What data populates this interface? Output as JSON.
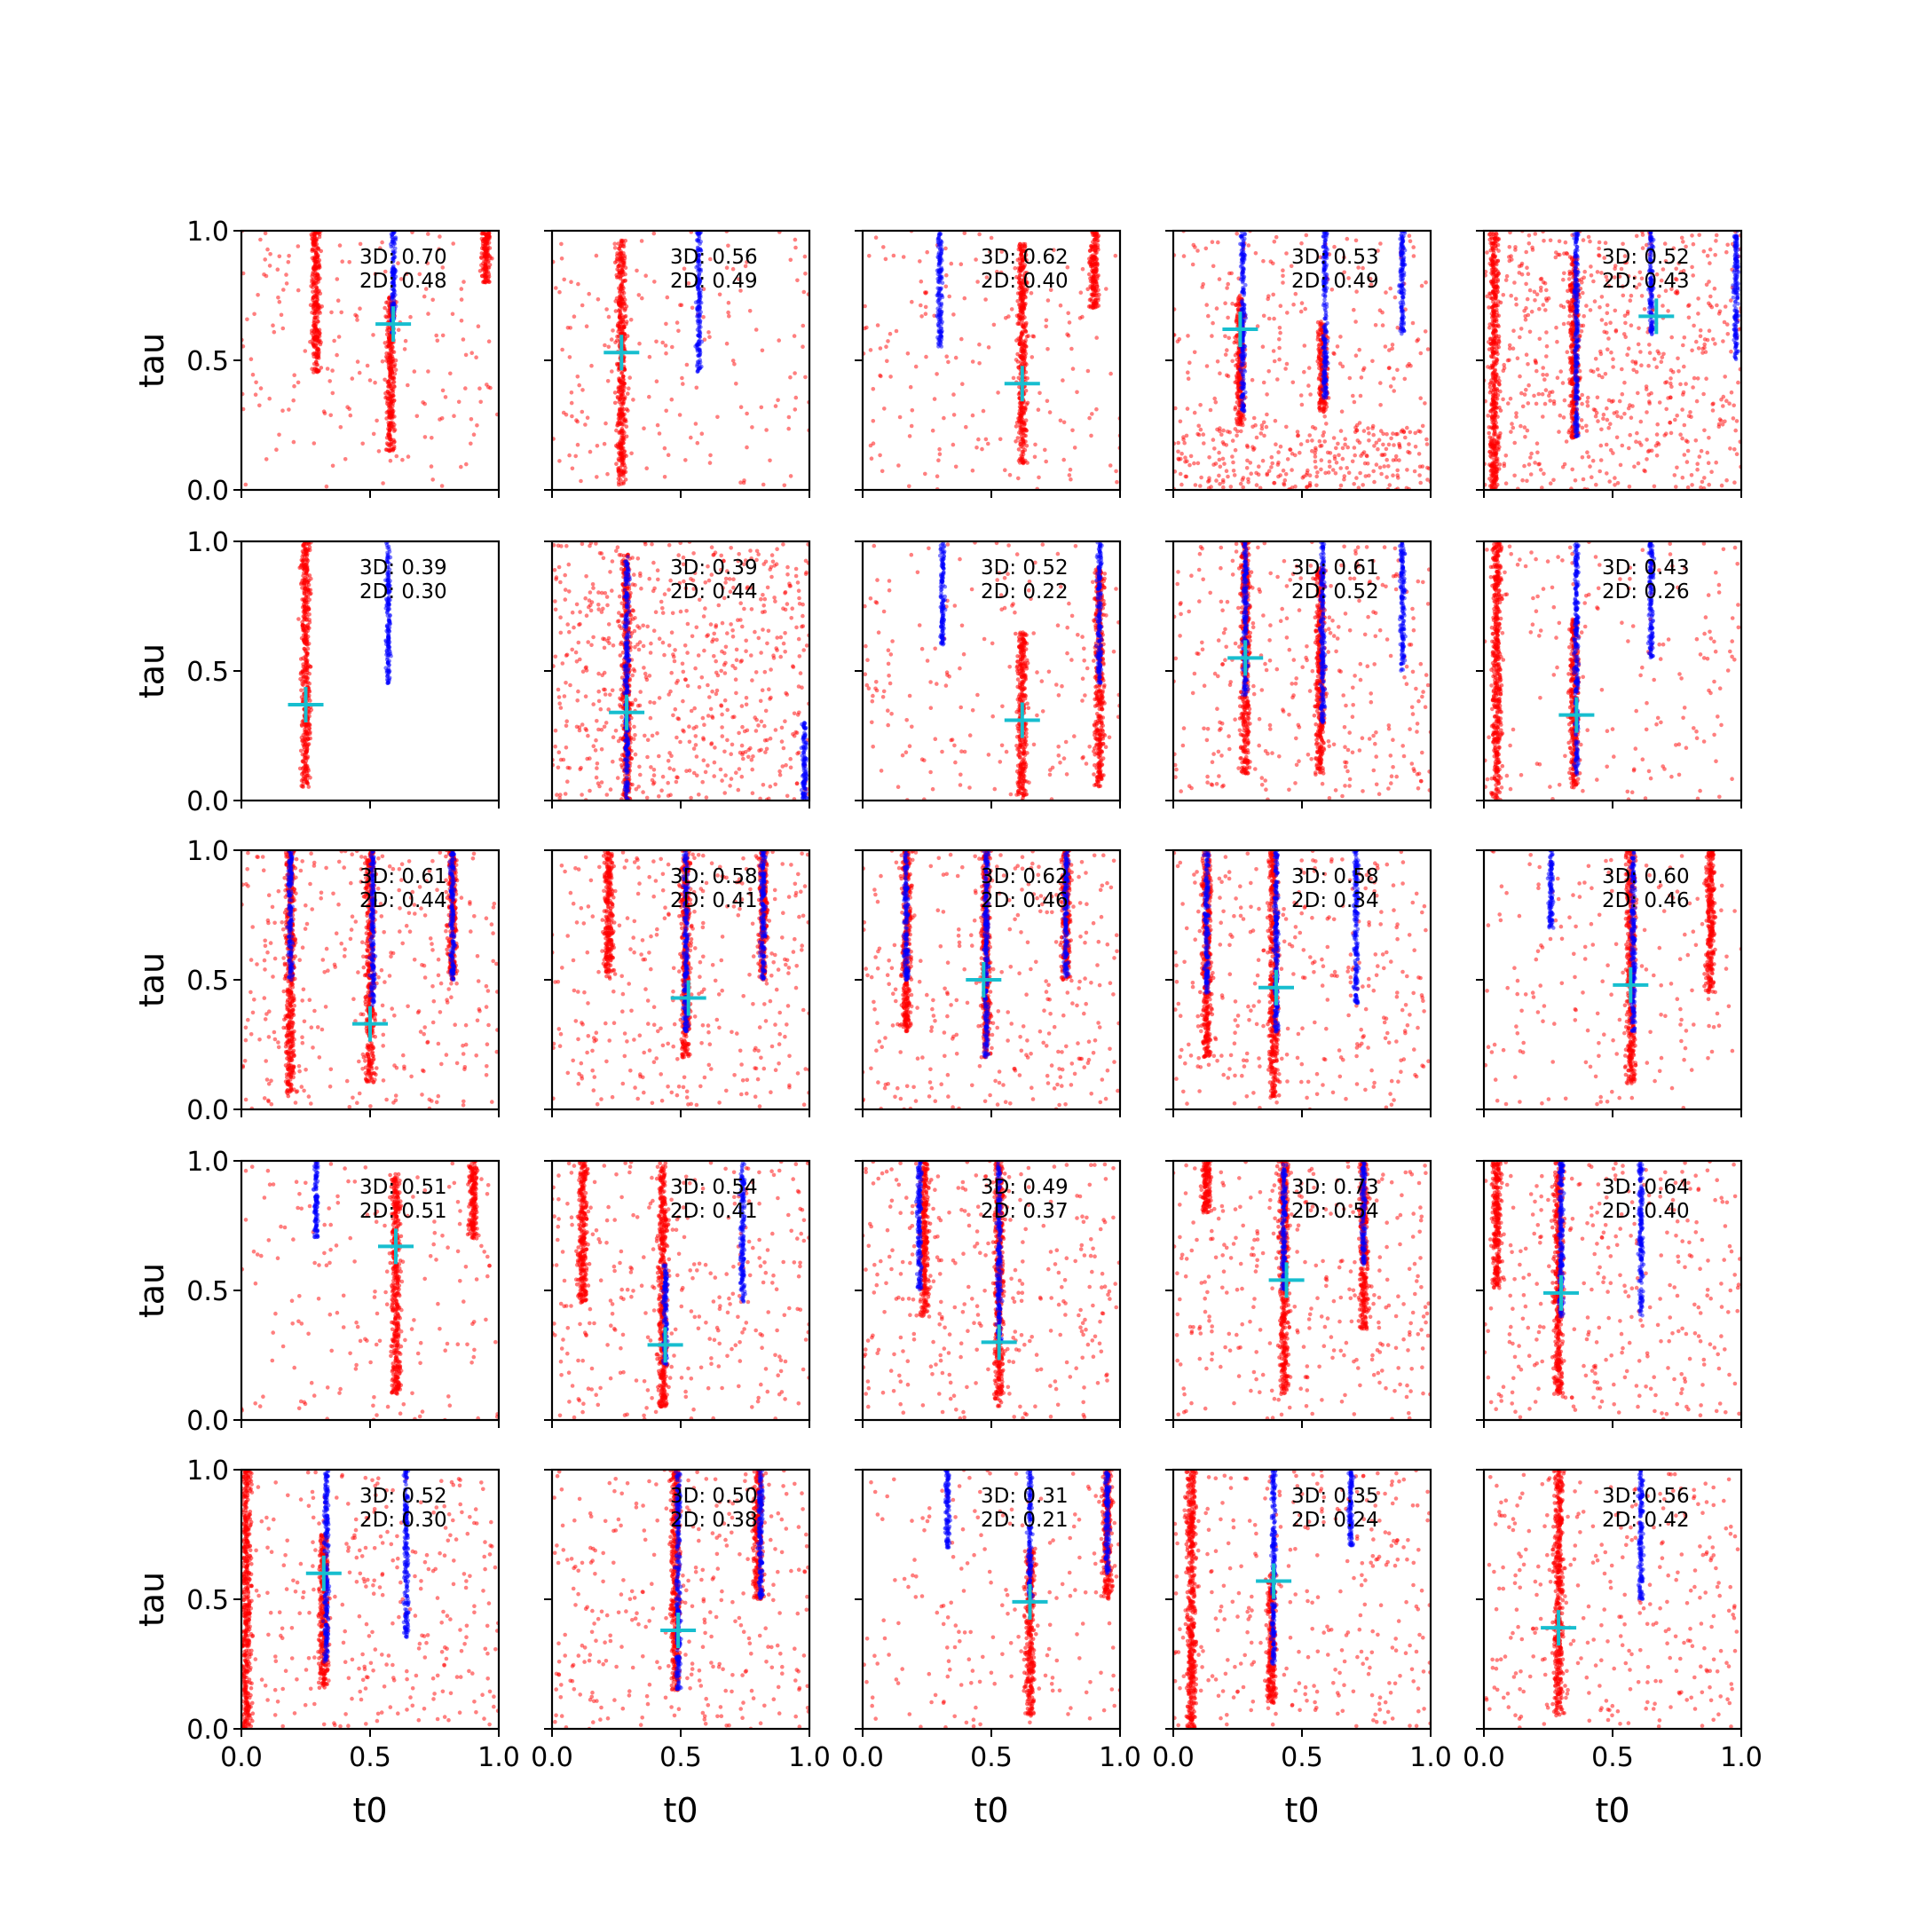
{
  "figure": {
    "xlabel": "t0",
    "ylabel": "tau",
    "xlim": [
      0,
      1
    ],
    "ylim": [
      0,
      1
    ],
    "xticks": [
      "0.0",
      "0.5",
      "1.0"
    ],
    "yticks": [
      "0.0",
      "0.5",
      "1.0"
    ],
    "colors": {
      "red": "#ff0000",
      "blue": "#0000ff",
      "cross": "#17becf",
      "axes": "#000000"
    }
  },
  "chart_data": [
    {
      "type": "scatter",
      "score_3d": "3D: 0.70",
      "score_2d": "2D: 0.48",
      "blue_stripes": [
        {
          "x": 0.59,
          "ymin": 0.6,
          "ymax": 1.0
        }
      ],
      "red_stripes": [
        {
          "x": 0.29,
          "ymin": 0.45,
          "ymax": 1.0
        },
        {
          "x": 0.58,
          "ymin": 0.15,
          "ymax": 0.75
        },
        {
          "x": 0.95,
          "ymin": 0.8,
          "ymax": 1.0
        }
      ],
      "red_scatter": "sparse",
      "target": {
        "x": 0.59,
        "y": 0.64
      }
    },
    {
      "type": "scatter",
      "score_3d": "3D: 0.56",
      "score_2d": "2D: 0.49",
      "blue_stripes": [
        {
          "x": 0.57,
          "ymin": 0.45,
          "ymax": 1.0
        }
      ],
      "red_stripes": [
        {
          "x": 0.27,
          "ymin": 0.02,
          "ymax": 0.97
        }
      ],
      "red_scatter": "sparse",
      "target": {
        "x": 0.27,
        "y": 0.53
      }
    },
    {
      "type": "scatter",
      "score_3d": "3D: 0.62",
      "score_2d": "2D: 0.40",
      "blue_stripes": [
        {
          "x": 0.3,
          "ymin": 0.55,
          "ymax": 1.0
        }
      ],
      "red_stripes": [
        {
          "x": 0.62,
          "ymin": 0.1,
          "ymax": 0.95
        },
        {
          "x": 0.9,
          "ymin": 0.7,
          "ymax": 1.0
        }
      ],
      "red_scatter": "sparse",
      "target": {
        "x": 0.62,
        "y": 0.41
      }
    },
    {
      "type": "scatter",
      "score_3d": "3D: 0.53",
      "score_2d": "2D: 0.49",
      "blue_stripes": [
        {
          "x": 0.27,
          "ymin": 0.3,
          "ymax": 1.0
        },
        {
          "x": 0.59,
          "ymin": 0.35,
          "ymax": 1.0
        },
        {
          "x": 0.89,
          "ymin": 0.6,
          "ymax": 1.0
        }
      ],
      "red_stripes": [
        {
          "x": 0.26,
          "ymin": 0.25,
          "ymax": 0.75
        },
        {
          "x": 0.58,
          "ymin": 0.3,
          "ymax": 0.65
        }
      ],
      "red_scatter": "dense_bottom",
      "target": {
        "x": 0.26,
        "y": 0.62
      }
    },
    {
      "type": "scatter",
      "score_3d": "3D: 0.52",
      "score_2d": "2D: 0.43",
      "blue_stripes": [
        {
          "x": 0.36,
          "ymin": 0.2,
          "ymax": 1.0
        },
        {
          "x": 0.65,
          "ymin": 0.6,
          "ymax": 1.0
        },
        {
          "x": 0.98,
          "ymin": 0.5,
          "ymax": 1.0
        }
      ],
      "red_stripes": [
        {
          "x": 0.04,
          "ymin": 0.0,
          "ymax": 1.0
        },
        {
          "x": 0.35,
          "ymin": 0.2,
          "ymax": 0.9
        }
      ],
      "red_scatter": "dense",
      "target": {
        "x": 0.67,
        "y": 0.67
      }
    },
    {
      "type": "scatter",
      "score_3d": "3D: 0.39",
      "score_2d": "2D: 0.30",
      "blue_stripes": [
        {
          "x": 0.57,
          "ymin": 0.45,
          "ymax": 1.0
        }
      ],
      "red_stripes": [
        {
          "x": 0.25,
          "ymin": 0.05,
          "ymax": 1.0
        }
      ],
      "red_scatter": "none",
      "target": {
        "x": 0.25,
        "y": 0.37
      }
    },
    {
      "type": "scatter",
      "score_3d": "3D: 0.39",
      "score_2d": "2D: 0.44",
      "blue_stripes": [
        {
          "x": 0.29,
          "ymin": 0.0,
          "ymax": 0.95
        },
        {
          "x": 0.98,
          "ymin": 0.0,
          "ymax": 0.3
        }
      ],
      "red_stripes": [
        {
          "x": 0.29,
          "ymin": 0.0,
          "ymax": 0.95
        }
      ],
      "red_scatter": "dense",
      "target": {
        "x": 0.29,
        "y": 0.34
      }
    },
    {
      "type": "scatter",
      "score_3d": "3D: 0.52",
      "score_2d": "2D: 0.22",
      "blue_stripes": [
        {
          "x": 0.31,
          "ymin": 0.6,
          "ymax": 1.0
        },
        {
          "x": 0.92,
          "ymin": 0.45,
          "ymax": 1.0
        }
      ],
      "red_stripes": [
        {
          "x": 0.62,
          "ymin": 0.0,
          "ymax": 0.65
        },
        {
          "x": 0.92,
          "ymin": 0.05,
          "ymax": 0.9
        }
      ],
      "red_scatter": "sparse",
      "target": {
        "x": 0.62,
        "y": 0.31
      }
    },
    {
      "type": "scatter",
      "score_3d": "3D: 0.61",
      "score_2d": "2D: 0.52",
      "blue_stripes": [
        {
          "x": 0.28,
          "ymin": 0.4,
          "ymax": 1.0
        },
        {
          "x": 0.58,
          "ymin": 0.3,
          "ymax": 1.0
        },
        {
          "x": 0.89,
          "ymin": 0.5,
          "ymax": 1.0
        }
      ],
      "red_stripes": [
        {
          "x": 0.28,
          "ymin": 0.1,
          "ymax": 1.0
        },
        {
          "x": 0.57,
          "ymin": 0.1,
          "ymax": 0.9
        }
      ],
      "red_scatter": "medium",
      "target": {
        "x": 0.28,
        "y": 0.55
      }
    },
    {
      "type": "scatter",
      "score_3d": "3D: 0.43",
      "score_2d": "2D: 0.26",
      "blue_stripes": [
        {
          "x": 0.36,
          "ymin": 0.1,
          "ymax": 1.0
        },
        {
          "x": 0.65,
          "ymin": 0.55,
          "ymax": 1.0
        }
      ],
      "red_stripes": [
        {
          "x": 0.05,
          "ymin": 0.0,
          "ymax": 1.0
        },
        {
          "x": 0.35,
          "ymin": 0.05,
          "ymax": 0.7
        }
      ],
      "red_scatter": "sparse",
      "target": {
        "x": 0.36,
        "y": 0.33
      }
    },
    {
      "type": "scatter",
      "score_3d": "3D: 0.61",
      "score_2d": "2D: 0.44",
      "blue_stripes": [
        {
          "x": 0.19,
          "ymin": 0.5,
          "ymax": 1.0
        },
        {
          "x": 0.51,
          "ymin": 0.4,
          "ymax": 1.0
        },
        {
          "x": 0.82,
          "ymin": 0.5,
          "ymax": 1.0
        }
      ],
      "red_stripes": [
        {
          "x": 0.19,
          "ymin": 0.05,
          "ymax": 1.0
        },
        {
          "x": 0.5,
          "ymin": 0.1,
          "ymax": 1.0
        },
        {
          "x": 0.82,
          "ymin": 0.5,
          "ymax": 1.0
        }
      ],
      "red_scatter": "medium",
      "target": {
        "x": 0.5,
        "y": 0.33
      }
    },
    {
      "type": "scatter",
      "score_3d": "3D: 0.58",
      "score_2d": "2D: 0.41",
      "blue_stripes": [
        {
          "x": 0.52,
          "ymin": 0.3,
          "ymax": 1.0
        },
        {
          "x": 0.82,
          "ymin": 0.5,
          "ymax": 1.0
        }
      ],
      "red_stripes": [
        {
          "x": 0.22,
          "ymin": 0.5,
          "ymax": 1.0
        },
        {
          "x": 0.52,
          "ymin": 0.2,
          "ymax": 1.0
        },
        {
          "x": 0.82,
          "ymin": 0.5,
          "ymax": 1.0
        }
      ],
      "red_scatter": "medium",
      "target": {
        "x": 0.53,
        "y": 0.43
      }
    },
    {
      "type": "scatter",
      "score_3d": "3D: 0.62",
      "score_2d": "2D: 0.46",
      "blue_stripes": [
        {
          "x": 0.17,
          "ymin": 0.5,
          "ymax": 1.0
        },
        {
          "x": 0.48,
          "ymin": 0.2,
          "ymax": 1.0
        },
        {
          "x": 0.79,
          "ymin": 0.5,
          "ymax": 1.0
        }
      ],
      "red_stripes": [
        {
          "x": 0.17,
          "ymin": 0.3,
          "ymax": 1.0
        },
        {
          "x": 0.48,
          "ymin": 0.2,
          "ymax": 1.0
        },
        {
          "x": 0.79,
          "ymin": 0.5,
          "ymax": 1.0
        }
      ],
      "red_scatter": "medium",
      "target": {
        "x": 0.47,
        "y": 0.5
      }
    },
    {
      "type": "scatter",
      "score_3d": "3D: 0.58",
      "score_2d": "2D: 0.34",
      "blue_stripes": [
        {
          "x": 0.13,
          "ymin": 0.45,
          "ymax": 1.0
        },
        {
          "x": 0.4,
          "ymin": 0.3,
          "ymax": 1.0
        },
        {
          "x": 0.71,
          "ymin": 0.4,
          "ymax": 1.0
        }
      ],
      "red_stripes": [
        {
          "x": 0.13,
          "ymin": 0.2,
          "ymax": 1.0
        },
        {
          "x": 0.39,
          "ymin": 0.05,
          "ymax": 1.0
        }
      ],
      "red_scatter": "medium",
      "target": {
        "x": 0.4,
        "y": 0.47
      }
    },
    {
      "type": "scatter",
      "score_3d": "3D: 0.60",
      "score_2d": "2D: 0.46",
      "blue_stripes": [
        {
          "x": 0.26,
          "ymin": 0.7,
          "ymax": 1.0
        },
        {
          "x": 0.58,
          "ymin": 0.3,
          "ymax": 1.0
        }
      ],
      "red_stripes": [
        {
          "x": 0.57,
          "ymin": 0.1,
          "ymax": 1.0
        },
        {
          "x": 0.88,
          "ymin": 0.45,
          "ymax": 1.0
        }
      ],
      "red_scatter": "sparse",
      "target": {
        "x": 0.57,
        "y": 0.48
      }
    },
    {
      "type": "scatter",
      "score_3d": "3D: 0.51",
      "score_2d": "2D: 0.51",
      "blue_stripes": [
        {
          "x": 0.29,
          "ymin": 0.7,
          "ymax": 1.0
        }
      ],
      "red_stripes": [
        {
          "x": 0.6,
          "ymin": 0.1,
          "ymax": 0.95
        },
        {
          "x": 0.9,
          "ymin": 0.7,
          "ymax": 1.0
        }
      ],
      "red_scatter": "sparse",
      "target": {
        "x": 0.6,
        "y": 0.67
      }
    },
    {
      "type": "scatter",
      "score_3d": "3D: 0.54",
      "score_2d": "2D: 0.41",
      "blue_stripes": [
        {
          "x": 0.44,
          "ymin": 0.2,
          "ymax": 0.6
        },
        {
          "x": 0.74,
          "ymin": 0.45,
          "ymax": 1.0
        }
      ],
      "red_stripes": [
        {
          "x": 0.43,
          "ymin": 0.05,
          "ymax": 1.0
        },
        {
          "x": 0.12,
          "ymin": 0.45,
          "ymax": 1.0
        }
      ],
      "red_scatter": "medium",
      "target": {
        "x": 0.44,
        "y": 0.29
      }
    },
    {
      "type": "scatter",
      "score_3d": "3D: 0.49",
      "score_2d": "2D: 0.37",
      "blue_stripes": [
        {
          "x": 0.22,
          "ymin": 0.5,
          "ymax": 1.0
        },
        {
          "x": 0.53,
          "ymin": 0.3,
          "ymax": 1.0
        }
      ],
      "red_stripes": [
        {
          "x": 0.53,
          "ymin": 0.05,
          "ymax": 1.0
        },
        {
          "x": 0.24,
          "ymin": 0.4,
          "ymax": 1.0
        }
      ],
      "red_scatter": "medium",
      "target": {
        "x": 0.53,
        "y": 0.3
      }
    },
    {
      "type": "scatter",
      "score_3d": "3D: 0.73",
      "score_2d": "2D: 0.54",
      "blue_stripes": [
        {
          "x": 0.43,
          "ymin": 0.5,
          "ymax": 1.0
        },
        {
          "x": 0.74,
          "ymin": 0.6,
          "ymax": 1.0
        }
      ],
      "red_stripes": [
        {
          "x": 0.43,
          "ymin": 0.1,
          "ymax": 1.0
        },
        {
          "x": 0.74,
          "ymin": 0.35,
          "ymax": 1.0
        },
        {
          "x": 0.13,
          "ymin": 0.8,
          "ymax": 1.0
        }
      ],
      "red_scatter": "medium",
      "target": {
        "x": 0.44,
        "y": 0.54
      }
    },
    {
      "type": "scatter",
      "score_3d": "3D: 0.64",
      "score_2d": "2D: 0.40",
      "blue_stripes": [
        {
          "x": 0.3,
          "ymin": 0.4,
          "ymax": 1.0
        },
        {
          "x": 0.61,
          "ymin": 0.4,
          "ymax": 1.0
        }
      ],
      "red_stripes": [
        {
          "x": 0.29,
          "ymin": 0.1,
          "ymax": 1.0
        },
        {
          "x": 0.05,
          "ymin": 0.5,
          "ymax": 1.0
        }
      ],
      "red_scatter": "medium",
      "target": {
        "x": 0.3,
        "y": 0.49
      }
    },
    {
      "type": "scatter",
      "score_3d": "3D: 0.52",
      "score_2d": "2D: 0.30",
      "blue_stripes": [
        {
          "x": 0.33,
          "ymin": 0.25,
          "ymax": 1.0
        },
        {
          "x": 0.64,
          "ymin": 0.35,
          "ymax": 1.0
        }
      ],
      "red_stripes": [
        {
          "x": 0.02,
          "ymin": 0.0,
          "ymax": 1.0
        },
        {
          "x": 0.32,
          "ymin": 0.15,
          "ymax": 0.75
        }
      ],
      "red_scatter": "medium",
      "target": {
        "x": 0.32,
        "y": 0.6
      }
    },
    {
      "type": "scatter",
      "score_3d": "3D: 0.50",
      "score_2d": "2D: 0.38",
      "blue_stripes": [
        {
          "x": 0.49,
          "ymin": 0.15,
          "ymax": 1.0
        },
        {
          "x": 0.81,
          "ymin": 0.5,
          "ymax": 1.0
        }
      ],
      "red_stripes": [
        {
          "x": 0.48,
          "ymin": 0.15,
          "ymax": 1.0
        },
        {
          "x": 0.8,
          "ymin": 0.5,
          "ymax": 1.0
        }
      ],
      "red_scatter": "medium",
      "target": {
        "x": 0.49,
        "y": 0.38
      }
    },
    {
      "type": "scatter",
      "score_3d": "3D: 0.31",
      "score_2d": "2D: 0.21",
      "blue_stripes": [
        {
          "x": 0.33,
          "ymin": 0.7,
          "ymax": 1.0
        },
        {
          "x": 0.65,
          "ymin": 0.5,
          "ymax": 1.0
        },
        {
          "x": 0.95,
          "ymin": 0.6,
          "ymax": 1.0
        }
      ],
      "red_stripes": [
        {
          "x": 0.65,
          "ymin": 0.05,
          "ymax": 0.7
        },
        {
          "x": 0.95,
          "ymin": 0.5,
          "ymax": 1.0
        }
      ],
      "red_scatter": "sparse",
      "target": {
        "x": 0.65,
        "y": 0.49
      }
    },
    {
      "type": "scatter",
      "score_3d": "3D: 0.35",
      "score_2d": "2D: 0.24",
      "blue_stripes": [
        {
          "x": 0.39,
          "ymin": 0.25,
          "ymax": 1.0
        },
        {
          "x": 0.69,
          "ymin": 0.7,
          "ymax": 1.0
        }
      ],
      "red_stripes": [
        {
          "x": 0.07,
          "ymin": 0.0,
          "ymax": 1.0
        },
        {
          "x": 0.38,
          "ymin": 0.1,
          "ymax": 0.6
        }
      ],
      "red_scatter": "medium",
      "target": {
        "x": 0.39,
        "y": 0.57
      }
    },
    {
      "type": "scatter",
      "score_3d": "3D: 0.56",
      "score_2d": "2D: 0.42",
      "blue_stripes": [
        {
          "x": 0.61,
          "ymin": 0.5,
          "ymax": 1.0
        }
      ],
      "red_stripes": [
        {
          "x": 0.29,
          "ymin": 0.05,
          "ymax": 1.0
        }
      ],
      "red_scatter": "medium",
      "target": {
        "x": 0.29,
        "y": 0.39
      }
    }
  ]
}
